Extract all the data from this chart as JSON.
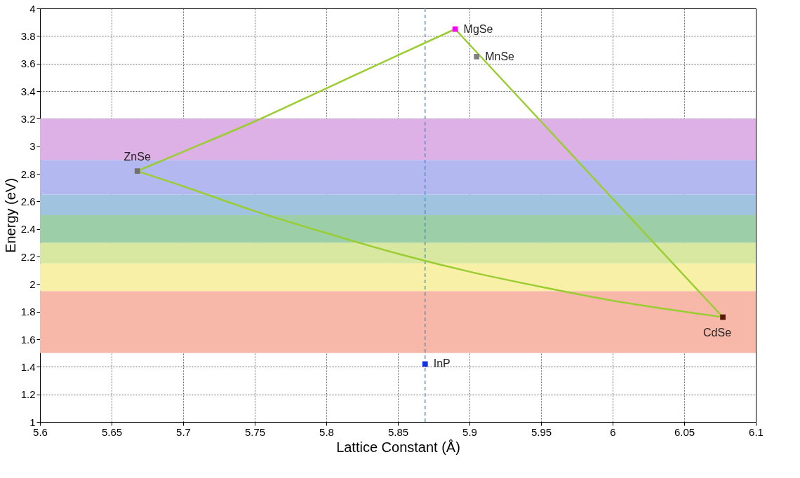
{
  "chart_data": {
    "type": "line",
    "xlabel": "Lattice Constant (Å)",
    "ylabel": "Energy (eV)",
    "xlim": [
      5.6,
      6.1
    ],
    "xticks": [
      5.6,
      5.65,
      5.7,
      5.75,
      5.8,
      5.85,
      5.9,
      5.95,
      6,
      6.05,
      6.1
    ],
    "ylim": [
      1,
      4
    ],
    "yticks": [
      1,
      1.2,
      1.4,
      1.6,
      1.8,
      2,
      2.2,
      2.4,
      2.6,
      2.8,
      3,
      3.2,
      3.4,
      3.6,
      3.8,
      4
    ],
    "grid": true,
    "legend": false,
    "bands": [
      {
        "axis": "y",
        "from": 1.5,
        "to": 1.95,
        "color": "#f7b8aa"
      },
      {
        "axis": "y",
        "from": 1.95,
        "to": 2.15,
        "color": "#f9f0a8"
      },
      {
        "axis": "y",
        "from": 2.15,
        "to": 2.3,
        "color": "#d9e8a0"
      },
      {
        "axis": "y",
        "from": 2.3,
        "to": 2.5,
        "color": "#9ccfa8"
      },
      {
        "axis": "y",
        "from": 2.5,
        "to": 2.65,
        "color": "#a0c4e0"
      },
      {
        "axis": "y",
        "from": 2.65,
        "to": 2.9,
        "color": "#b4b8f0"
      },
      {
        "axis": "y",
        "from": 2.9,
        "to": 3.2,
        "color": "#ddb0e6"
      }
    ],
    "ref_lines": [
      {
        "axis": "x",
        "value": 5.869,
        "color": "#3a8cc8",
        "line_style": "dashed"
      }
    ],
    "series": [
      {
        "type": "line",
        "color": "#9acd32",
        "marker": "none",
        "x": [
          5.668,
          5.7,
          5.75,
          5.8,
          5.85,
          5.89
        ],
        "values": [
          2.82,
          2.96,
          3.18,
          3.42,
          3.66,
          3.85
        ]
      },
      {
        "type": "line",
        "color": "#9acd32",
        "marker": "none",
        "x": [
          5.89,
          5.95,
          6.0,
          6.077
        ],
        "values": [
          3.85,
          3.18,
          2.62,
          1.76
        ]
      },
      {
        "type": "line",
        "color": "#9acd32",
        "marker": "none",
        "x": [
          5.668,
          5.7,
          5.75,
          5.8,
          5.85,
          5.9,
          5.95,
          6.0,
          6.05,
          6.077
        ],
        "values": [
          2.82,
          2.71,
          2.53,
          2.37,
          2.22,
          2.09,
          1.98,
          1.88,
          1.8,
          1.76
        ]
      },
      {
        "type": "scatter",
        "name": "ZnSe",
        "color": "#707070",
        "marker": "square",
        "x": [
          5.668
        ],
        "values": [
          2.82
        ]
      },
      {
        "type": "scatter",
        "name": "MgSe",
        "color": "#ff00ff",
        "marker": "square",
        "x": [
          5.89
        ],
        "values": [
          3.85
        ]
      },
      {
        "type": "scatter",
        "name": "MnSe",
        "color": "#808080",
        "marker": "square",
        "x": [
          5.905
        ],
        "values": [
          3.65
        ]
      },
      {
        "type": "scatter",
        "name": "CdSe",
        "color": "#5a1a0a",
        "marker": "square",
        "x": [
          6.077
        ],
        "values": [
          1.76
        ]
      },
      {
        "type": "scatter",
        "name": "InP",
        "color": "#1030e0",
        "marker": "square",
        "x": [
          5.869
        ],
        "values": [
          1.42
        ]
      }
    ]
  }
}
